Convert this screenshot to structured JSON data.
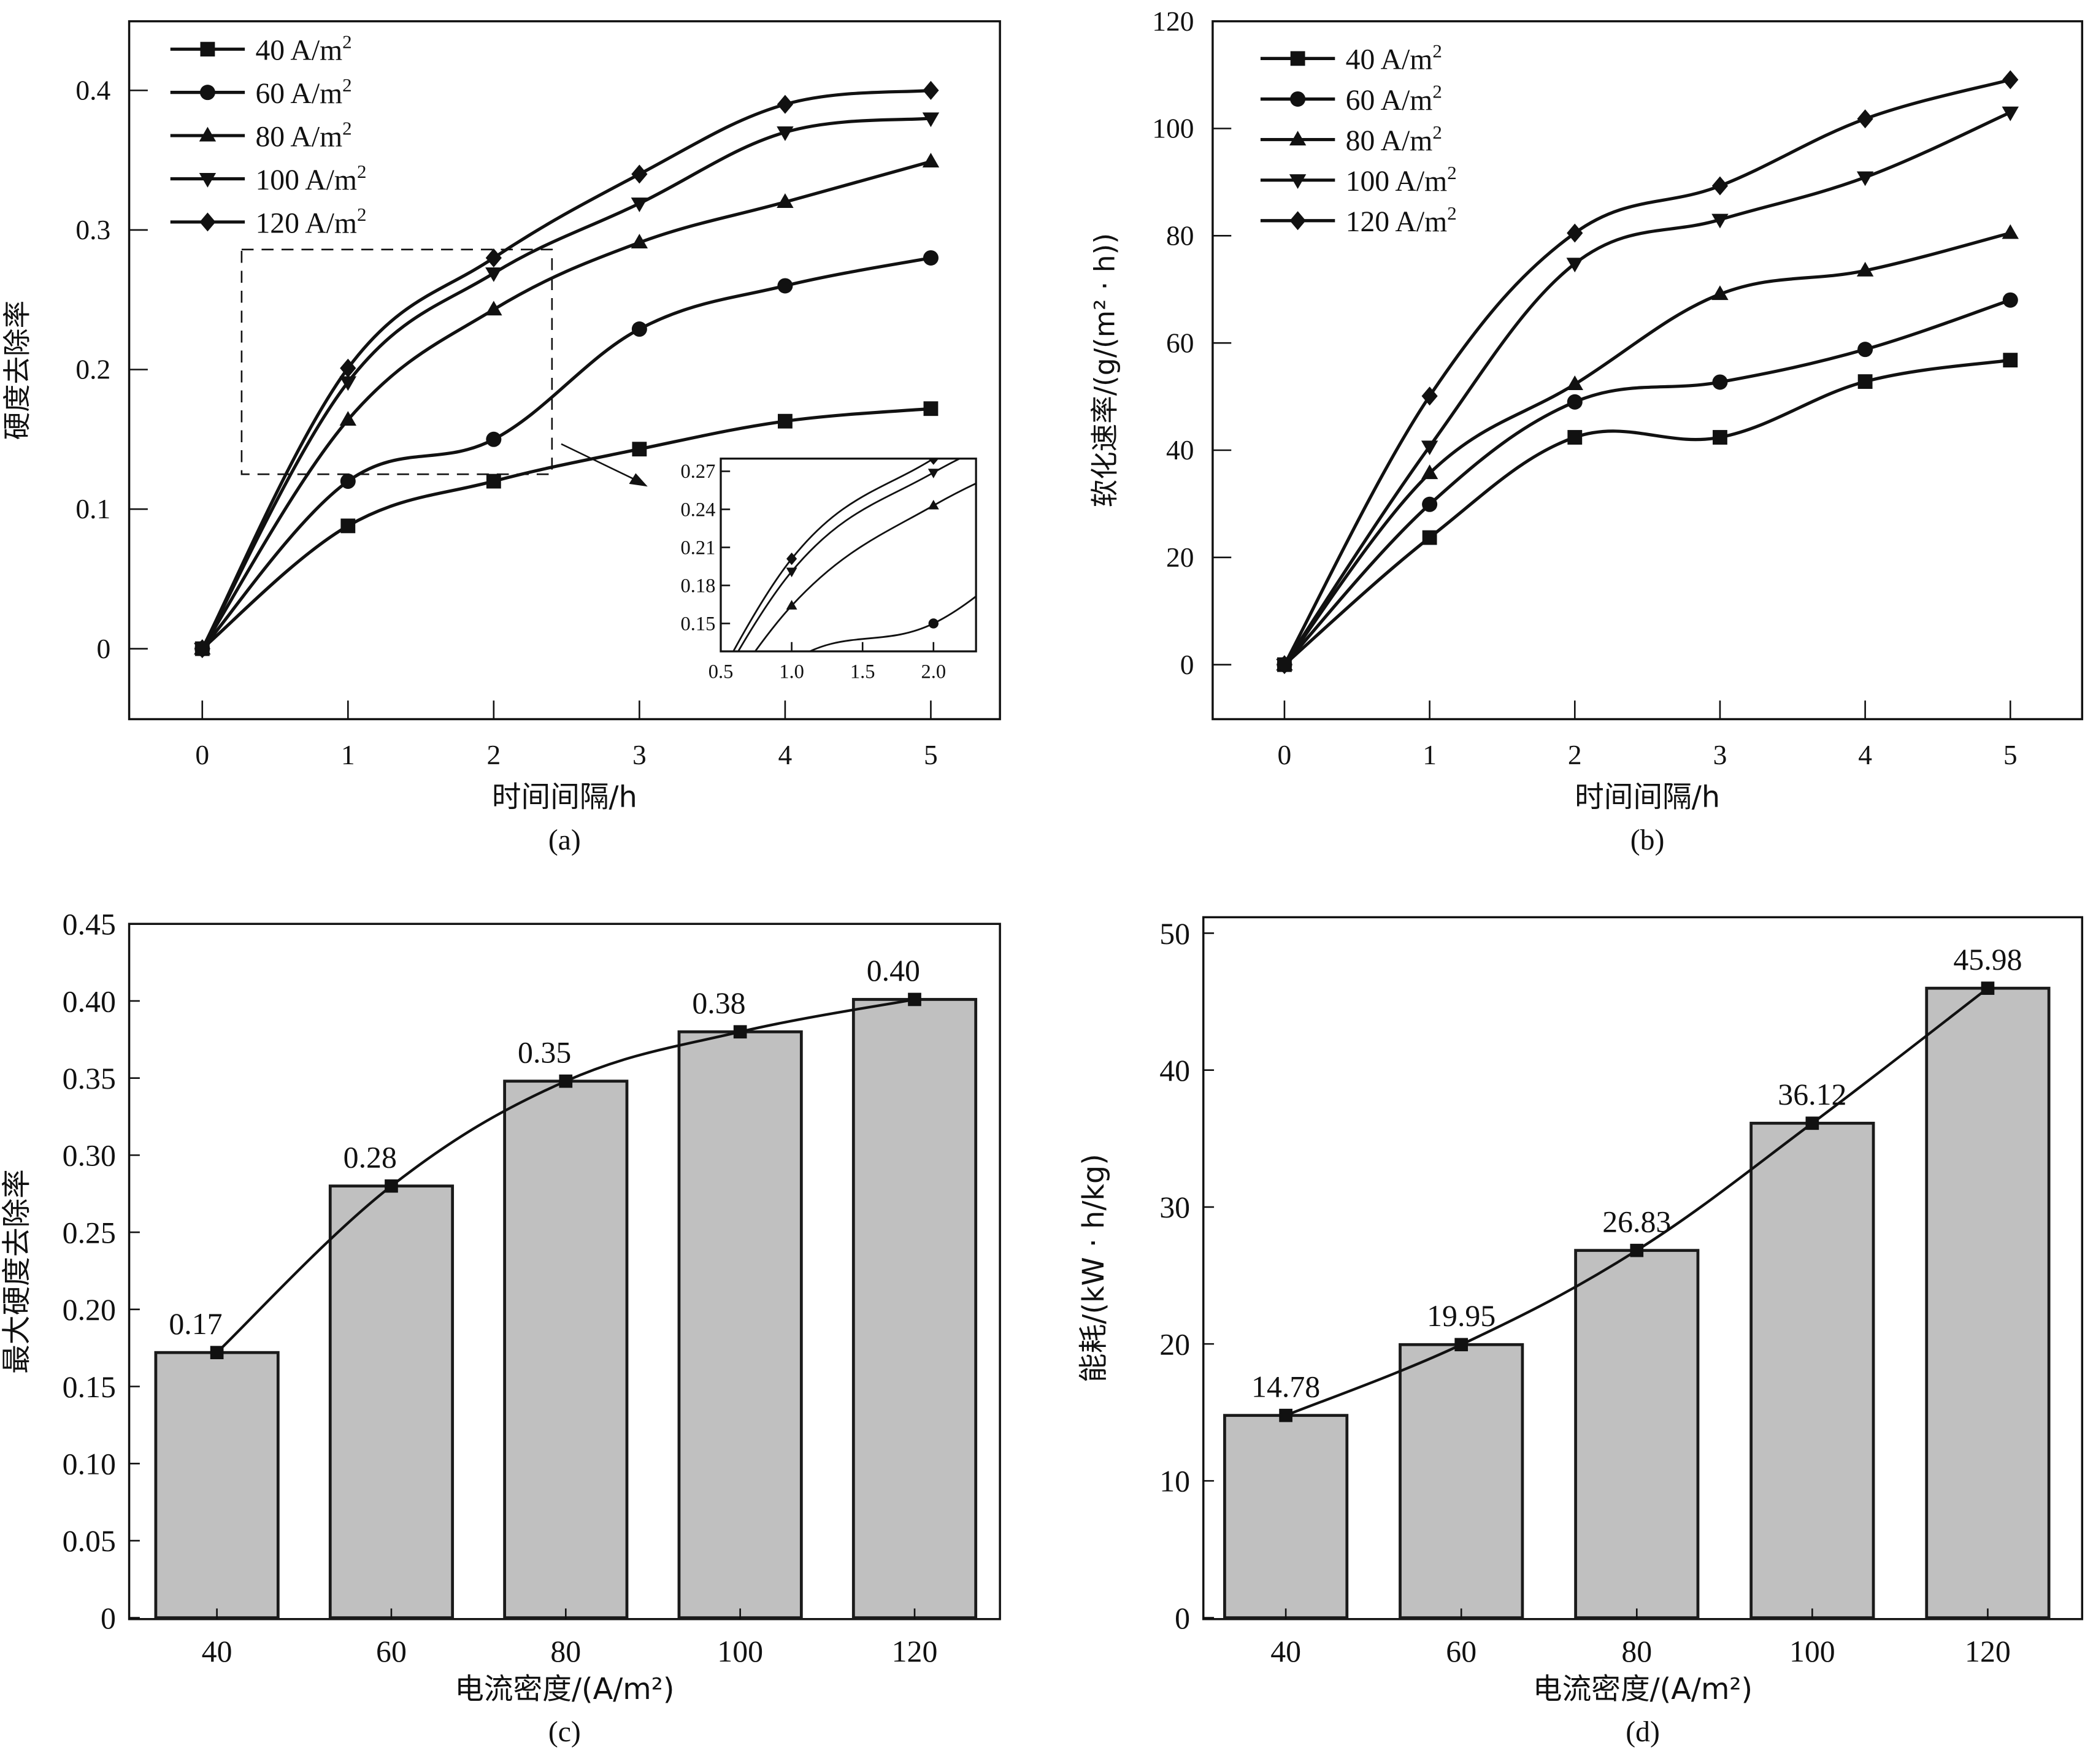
{
  "chart_data": [
    {
      "id": "a",
      "type": "line",
      "caption": "(a)",
      "xlabel": "时间间隔/h",
      "ylabel": "硬度去除率",
      "x": [
        0,
        1,
        2,
        3,
        4,
        5
      ],
      "xticks": [
        "0",
        "1",
        "2",
        "3",
        "4",
        "5"
      ],
      "yticks": [
        "0",
        "0.1",
        "0.2",
        "0.3",
        "0.4"
      ],
      "ylim": [
        -0.05,
        0.45
      ],
      "xlim": [
        -0.5,
        5.5
      ],
      "legend_position": "top-left",
      "series": [
        {
          "name": "40 A/m²",
          "label": "40 A/m",
          "sup": "2",
          "marker": "square",
          "values": [
            0,
            0.088,
            0.12,
            0.143,
            0.163,
            0.172
          ]
        },
        {
          "name": "60 A/m²",
          "label": "60 A/m",
          "sup": "2",
          "marker": "circle",
          "values": [
            0,
            0.12,
            0.15,
            0.229,
            0.26,
            0.28
          ]
        },
        {
          "name": "80 A/m²",
          "label": "80 A/m",
          "sup": "2",
          "marker": "triangle-up",
          "values": [
            0,
            0.164,
            0.243,
            0.291,
            0.32,
            0.349
          ]
        },
        {
          "name": "100 A/m²",
          "label": "100 A/m",
          "sup": "2",
          "marker": "triangle-down",
          "values": [
            0,
            0.191,
            0.269,
            0.319,
            0.37,
            0.38
          ]
        },
        {
          "name": "120 A/m²",
          "label": "120 A/m",
          "sup": "2",
          "marker": "diamond",
          "values": [
            0,
            0.201,
            0.28,
            0.34,
            0.39,
            0.4
          ]
        }
      ],
      "zoom_region": {
        "x": [
          0.27,
          2.4
        ],
        "y": [
          0.125,
          0.286
        ]
      },
      "inset": {
        "xlim": [
          0.5,
          2.3
        ],
        "ylim": [
          0.128,
          0.28
        ],
        "xticks": [
          "0.5",
          "1.0",
          "1.5",
          "2.0"
        ],
        "yticks": [
          "0.15",
          "0.18",
          "0.21",
          "0.24",
          "0.27"
        ]
      }
    },
    {
      "id": "b",
      "type": "line",
      "caption": "(b)",
      "xlabel": "时间间隔/h",
      "ylabel": "软化速率/(g/(m² · h))",
      "x": [
        0,
        1,
        2,
        3,
        4,
        5
      ],
      "xticks": [
        "0",
        "1",
        "2",
        "3",
        "4",
        "5"
      ],
      "yticks": [
        "0",
        "20",
        "40",
        "60",
        "80",
        "100",
        "120"
      ],
      "ylim": [
        -10,
        120
      ],
      "xlim": [
        -0.5,
        5.5
      ],
      "legend_position": "top-left",
      "series": [
        {
          "name": "40 A/m²",
          "label": "40 A/m",
          "sup": "2",
          "marker": "square",
          "values": [
            0,
            23.7,
            42.4,
            42.4,
            52.8,
            56.8
          ]
        },
        {
          "name": "60 A/m²",
          "label": "60 A/m",
          "sup": "2",
          "marker": "circle",
          "values": [
            0,
            29.9,
            49.0,
            52.7,
            58.8,
            68.0
          ]
        },
        {
          "name": "80 A/m²",
          "label": "80 A/m",
          "sup": "2",
          "marker": "triangle-up",
          "values": [
            0,
            35.7,
            52.3,
            69.1,
            73.5,
            80.5
          ]
        },
        {
          "name": "100 A/m²",
          "label": "100 A/m",
          "sup": "2",
          "marker": "triangle-down",
          "values": [
            0,
            40.7,
            74.8,
            83.0,
            90.9,
            103.0
          ]
        },
        {
          "name": "120 A/m²",
          "label": "120 A/m",
          "sup": "2",
          "marker": "diamond",
          "values": [
            0,
            50.1,
            80.5,
            89.3,
            101.8,
            109.1
          ]
        }
      ]
    },
    {
      "id": "c",
      "type": "bar",
      "caption": "(c)",
      "xlabel": "电流密度/(A/m²)",
      "ylabel": "最大硬度去除率",
      "categories": [
        "40",
        "60",
        "80",
        "100",
        "120"
      ],
      "values": [
        0.172,
        0.28,
        0.348,
        0.38,
        0.401
      ],
      "data_labels": [
        "0.17",
        "0.28",
        "0.35",
        "0.38",
        "0.40"
      ],
      "yticks": [
        "0",
        "0.05",
        "0.10",
        "0.15",
        "0.20",
        "0.25",
        "0.30",
        "0.35",
        "0.40",
        "0.45"
      ],
      "ylim": [
        0,
        0.45
      ],
      "overlay": "fitted-curve-with-square-markers"
    },
    {
      "id": "d",
      "type": "bar",
      "caption": "(d)",
      "xlabel": "电流密度/(A/m²)",
      "ylabel": "能耗/(kW · h/kg)",
      "categories": [
        "40",
        "60",
        "80",
        "100",
        "120"
      ],
      "values": [
        14.78,
        19.95,
        26.83,
        36.12,
        45.98
      ],
      "data_labels": [
        "14.78",
        "19.95",
        "26.83",
        "36.12",
        "45.98"
      ],
      "yticks": [
        "0",
        "10",
        "20",
        "30",
        "40",
        "50"
      ],
      "ylim": [
        0,
        51
      ],
      "overlay": "fitted-curve-with-square-markers"
    }
  ],
  "colors": {
    "bar_fill": "#c0c0c0",
    "ink": "#111111"
  }
}
